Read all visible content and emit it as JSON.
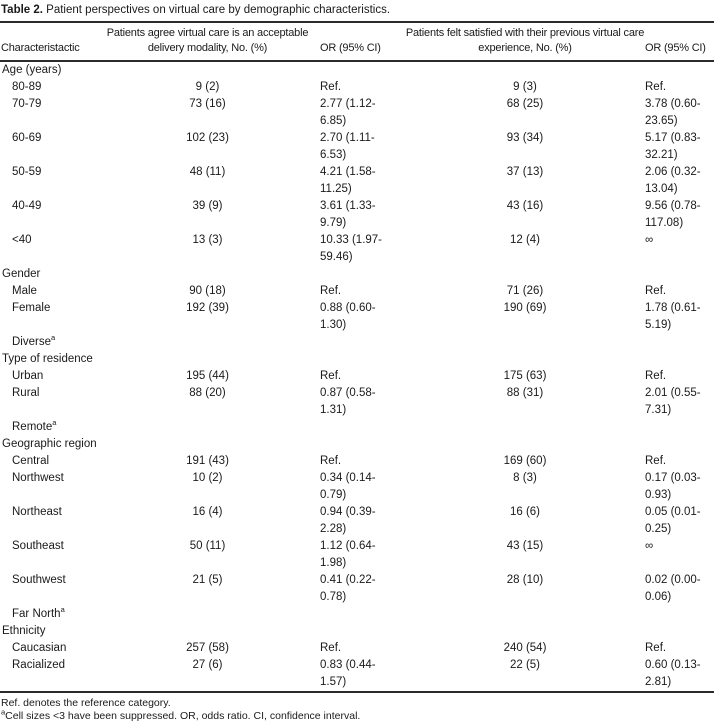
{
  "palette": {
    "ink": "#1a1a1a",
    "background": "#ffffff",
    "rule": "#2b2b2b"
  },
  "caption": {
    "label": "Table 2.",
    "text": "Patient perspectives on virtual care by demographic characteristics."
  },
  "columns": [
    "Characteristactic",
    "Patients agree virtual care is an acceptable delivery modality, No. (%)",
    "OR (95% CI)",
    "Patients felt satisfied with their previous virtual care experience, No. (%)",
    "OR (95% CI)"
  ],
  "sections": [
    {
      "label": "Age (years)",
      "rows": [
        {
          "label": "80-89",
          "n1": "9 (2)",
          "or1": "Ref.",
          "n2": "9 (3)",
          "or2": "Ref."
        },
        {
          "label": "70-79",
          "n1": "73 (16)",
          "or1": "2.77 (1.12-6.85)",
          "n2": "68 (25)",
          "or2": "3.78 (0.60-23.65)"
        },
        {
          "label": "60-69",
          "n1": "102 (23)",
          "or1": "2.70 (1.11-6.53)",
          "n2": "93 (34)",
          "or2": "5.17 (0.83-32.21)"
        },
        {
          "label": "50-59",
          "n1": "48 (11)",
          "or1": "4.21 (1.58-11.25)",
          "n2": "37 (13)",
          "or2": "2.06 (0.32-13.04)"
        },
        {
          "label": "40-49",
          "n1": "39 (9)",
          "or1": "3.61 (1.33-9.79)",
          "n2": "43 (16)",
          "or2": "9.56 (0.78-117.08)"
        },
        {
          "label": "<40",
          "n1": "13 (3)",
          "or1": "10.33 (1.97-59.46)",
          "n2": "12 (4)",
          "or2": "∞"
        }
      ]
    },
    {
      "label": "Gender",
      "rows": [
        {
          "label": "Male",
          "n1": "90 (18)",
          "or1": "Ref.",
          "n2": "71 (26)",
          "or2": "Ref."
        },
        {
          "label": "Female",
          "n1": "192 (39)",
          "or1": "0.88 (0.60-1.30)",
          "n2": "190 (69)",
          "or2": "1.78 (0.61-5.19)"
        },
        {
          "label": "Diverse",
          "sup": "a",
          "n1": "",
          "or1": "",
          "n2": "",
          "or2": ""
        }
      ]
    },
    {
      "label": "Type of residence",
      "rows": [
        {
          "label": "Urban",
          "n1": "195 (44)",
          "or1": "Ref.",
          "n2": "175 (63)",
          "or2": "Ref."
        },
        {
          "label": "Rural",
          "n1": "88 (20)",
          "or1": "0.87 (0.58-1.31)",
          "n2": "88 (31)",
          "or2": "2.01 (0.55-7.31)"
        },
        {
          "label": "Remote",
          "sup": "a",
          "n1": "",
          "or1": "",
          "n2": "",
          "or2": ""
        }
      ]
    },
    {
      "label": "Geographic region",
      "rows": [
        {
          "label": "Central",
          "n1": "191 (43)",
          "or1": "Ref.",
          "n2": "169 (60)",
          "or2": "Ref."
        },
        {
          "label": "Northwest",
          "n1": "10 (2)",
          "or1": "0.34 (0.14-0.79)",
          "n2": "8 (3)",
          "or2": "0.17 (0.03-0.93)"
        },
        {
          "label": "Northeast",
          "n1": "16 (4)",
          "or1": "0.94 (0.39-2.28)",
          "n2": "16 (6)",
          "or2": "0.05 (0.01-0.25)"
        },
        {
          "label": "Southeast",
          "n1": "50 (11)",
          "or1": "1.12 (0.64-1.98)",
          "n2": "43 (15)",
          "or2": "∞"
        },
        {
          "label": "Southwest",
          "n1": "21 (5)",
          "or1": "0.41 (0.22-0.78)",
          "n2": "28 (10)",
          "or2": "0.02 (0.00-0.06)"
        },
        {
          "label": "Far North",
          "sup": "a",
          "n1": "",
          "or1": "",
          "n2": "",
          "or2": ""
        }
      ]
    },
    {
      "label": "Ethnicity",
      "rows": [
        {
          "label": "Caucasian",
          "n1": "257 (58)",
          "or1": "Ref.",
          "n2": "240 (54)",
          "or2": "Ref."
        },
        {
          "label": "Racialized",
          "n1": "27 (6)",
          "or1": "0.83 (0.44-1.57)",
          "n2": "22 (5)",
          "or2": "0.60 (0.13-2.81)"
        }
      ]
    }
  ],
  "footnotes": {
    "ref_note": "Ref. denotes the reference category.",
    "a_note": {
      "sup": "a",
      "text": "Cell sizes <3 have been suppressed. OR, odds ratio. CI, confidence interval."
    }
  }
}
